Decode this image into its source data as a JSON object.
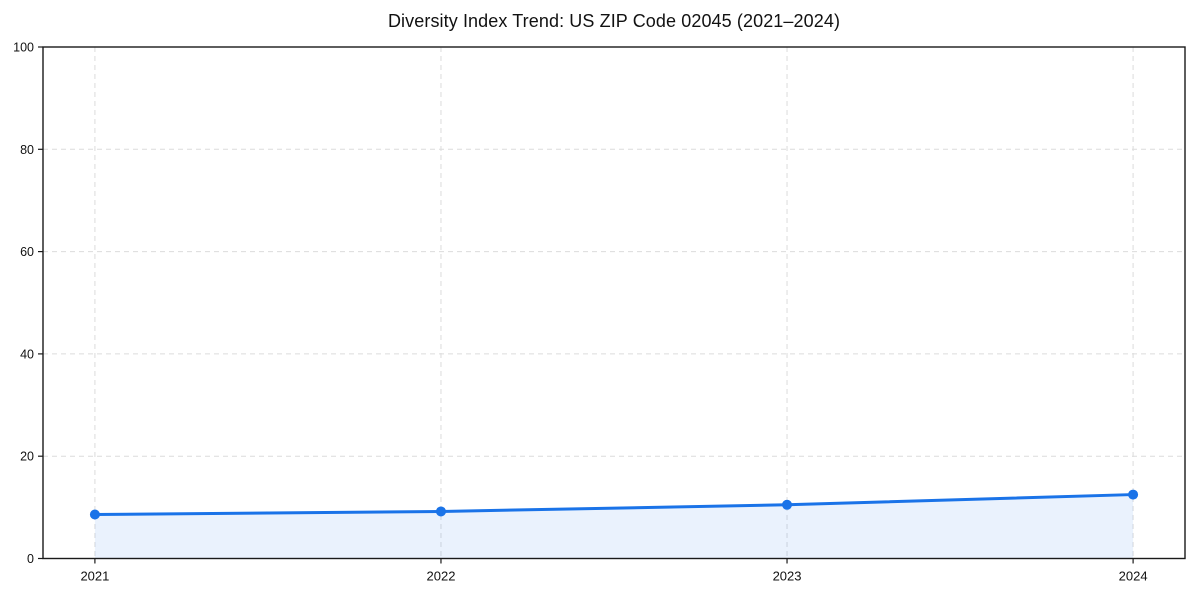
{
  "chart_data": {
    "type": "area",
    "title": "Diversity Index Trend: US ZIP Code 02045 (2021–2024)",
    "x": [
      "2021",
      "2022",
      "2023",
      "2024"
    ],
    "series": [
      {
        "name": "Diversity Index",
        "values": [
          8.6,
          9.2,
          10.5,
          12.5
        ]
      }
    ],
    "xlabel": "",
    "ylabel": "",
    "ylim": [
      0,
      100
    ],
    "yticks": [
      0,
      20,
      40,
      60,
      80,
      100
    ],
    "grid": true,
    "grid_style": "dashed",
    "legend_position": "none",
    "colors": {
      "line": "#1a73e8",
      "marker": "#1a73e8",
      "area_fill": "rgba(26,115,232,0.09)",
      "grid": "#dcdcdc",
      "spine": "#1a1a1a",
      "background": "#ffffff"
    }
  }
}
